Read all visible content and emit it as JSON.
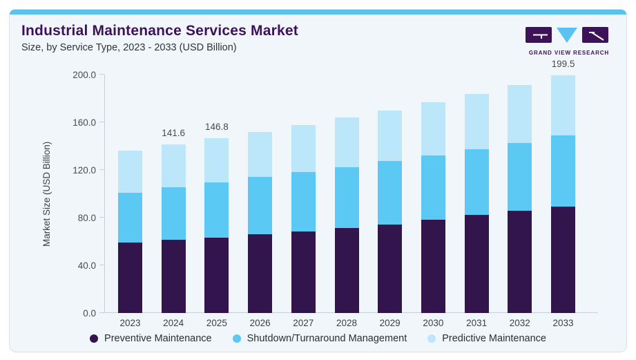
{
  "header": {
    "title": "Industrial Maintenance Services Market",
    "subtitle": "Size, by Service Type, 2023 - 2033 (USD Billion)"
  },
  "logo": {
    "name": "Grand View Research logo",
    "caption": "GRAND VIEW RESEARCH",
    "purple": "#3D1259",
    "blue": "#5BC2EF"
  },
  "theme": {
    "card_background": "#F1F6FA",
    "card_border": "#D9E1E8",
    "top_strip": "#5BC2EF",
    "axis_line": "#C9CDD3",
    "axis_text": "#4A4A4A",
    "title_color": "#3D1259"
  },
  "chart_data": {
    "type": "bar",
    "stacked": true,
    "title": "Industrial Maintenance Services Market",
    "subtitle": "Size, by Service Type, 2023 - 2033 (USD Billion)",
    "ylabel": "Market Size (USD Billion)",
    "ylim": [
      0,
      200
    ],
    "yticks": [
      "0.0",
      "40.0",
      "80.0",
      "120.0",
      "160.0",
      "200.0"
    ],
    "grid": false,
    "legend_position": "bottom",
    "categories": [
      "2023",
      "2024",
      "2025",
      "2026",
      "2027",
      "2028",
      "2029",
      "2030",
      "2031",
      "2032",
      "2033"
    ],
    "series": [
      {
        "name": "Preventive Maintenance",
        "color": "#33154E",
        "values": [
          59.4,
          61.4,
          63.3,
          66.0,
          68.6,
          71.1,
          74.4,
          78.1,
          82.2,
          85.8,
          89.1
        ]
      },
      {
        "name": "Shutdown/Turnaround Management",
        "color": "#5BC9F4",
        "values": [
          41.7,
          43.9,
          46.4,
          48.1,
          49.9,
          51.2,
          52.9,
          54.2,
          55.5,
          57.1,
          60.0
        ]
      },
      {
        "name": "Predictive Maintenance",
        "color": "#BCE7FB",
        "values": [
          35.0,
          36.3,
          37.1,
          38.0,
          39.0,
          41.8,
          42.6,
          44.8,
          46.4,
          48.4,
          50.4
        ]
      }
    ],
    "totals": [
      136.1,
      141.6,
      146.8,
      152.1,
      157.5,
      164.1,
      169.9,
      177.1,
      184.1,
      191.3,
      199.5
    ],
    "total_labels": {
      "2024": "141.6",
      "2025": "146.8",
      "2033": "199.5"
    }
  }
}
